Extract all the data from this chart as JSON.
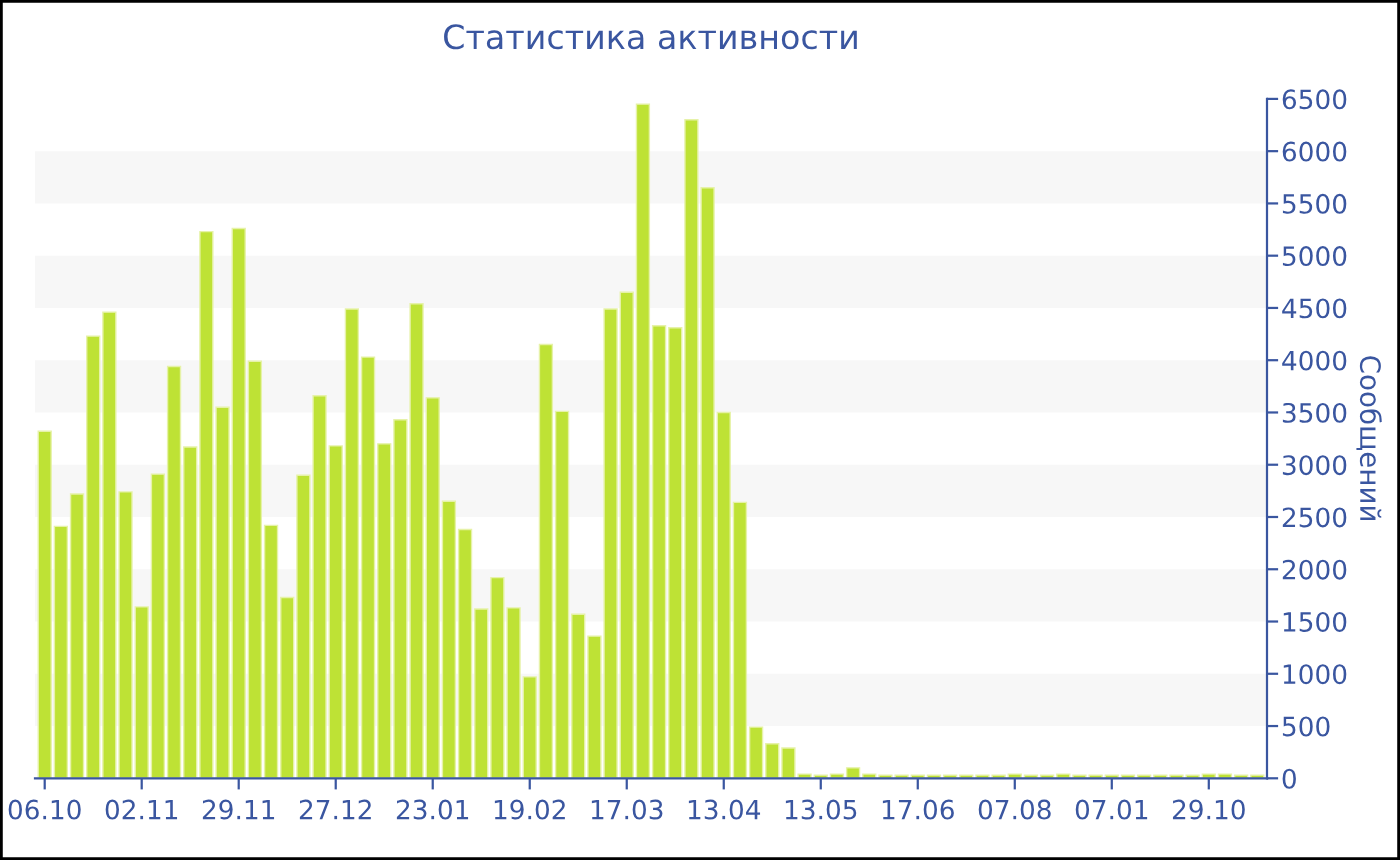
{
  "chart_data": {
    "type": "bar",
    "title": "Статистика активности",
    "ylabel": "Сообщений",
    "categories": [
      "06.10",
      null,
      null,
      null,
      null,
      null,
      "02.11",
      null,
      null,
      null,
      null,
      null,
      "29.11",
      null,
      null,
      null,
      null,
      null,
      "27.12",
      null,
      null,
      null,
      null,
      null,
      "23.01",
      null,
      null,
      null,
      null,
      null,
      "19.02",
      null,
      null,
      null,
      null,
      null,
      "17.03",
      null,
      null,
      null,
      null,
      null,
      "13.04",
      null,
      null,
      null,
      null,
      null,
      "13.05",
      null,
      null,
      null,
      null,
      null,
      "17.06",
      null,
      null,
      null,
      null,
      null,
      "07.08",
      null,
      null,
      null,
      null,
      null,
      "07.01",
      null,
      null,
      null,
      null,
      null,
      "29.10",
      null,
      null,
      null
    ],
    "values": [
      3320,
      2410,
      2720,
      4230,
      4460,
      2740,
      1640,
      2910,
      3940,
      3170,
      5230,
      3550,
      5260,
      3990,
      2420,
      1730,
      2900,
      3660,
      3180,
      4490,
      4030,
      3200,
      3430,
      4540,
      3640,
      2650,
      2380,
      1620,
      1920,
      1630,
      970,
      4150,
      3510,
      1570,
      1360,
      4490,
      4650,
      6450,
      4330,
      4310,
      6300,
      5650,
      3500,
      2640,
      490,
      330,
      290,
      40,
      30,
      40,
      100,
      40,
      30,
      30,
      30,
      30,
      30,
      30,
      30,
      30,
      40,
      30,
      30,
      40,
      30,
      30,
      30,
      30,
      30,
      30,
      30,
      30,
      40,
      40,
      30,
      30
    ],
    "color": "#bee235",
    "ylim": [
      0,
      6500
    ],
    "yticks": [
      0,
      500,
      1000,
      1500,
      2000,
      2500,
      3000,
      3500,
      4000,
      4500,
      5000,
      5500,
      6000,
      6500
    ],
    "bands": [
      {
        "axis": "y",
        "from": 500,
        "to": 1000,
        "color": "#f7f7f7"
      },
      {
        "axis": "y",
        "from": 1500,
        "to": 2000,
        "color": "#f7f7f7"
      },
      {
        "axis": "y",
        "from": 2500,
        "to": 3000,
        "color": "#f7f7f7"
      },
      {
        "axis": "y",
        "from": 3500,
        "to": 4000,
        "color": "#f7f7f7"
      },
      {
        "axis": "y",
        "from": 4500,
        "to": 5000,
        "color": "#f7f7f7"
      },
      {
        "axis": "y",
        "from": 5500,
        "to": 6000,
        "color": "#f7f7f7"
      }
    ],
    "grid": false,
    "legend": false
  }
}
